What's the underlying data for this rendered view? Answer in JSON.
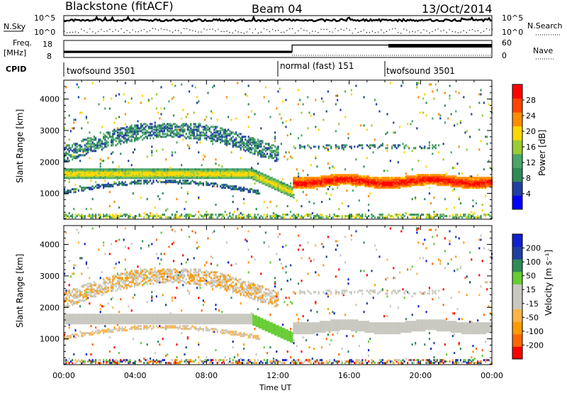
{
  "header": {
    "station": "Blackstone (fitACF)",
    "beam": "Beam 04",
    "date": "13/Oct/2014"
  },
  "noise_panel": {
    "left_label": "N.Sky",
    "right_label": "N.Search",
    "left_ticks": [
      "10^5",
      "10^0"
    ],
    "right_ticks": [
      "10^5",
      "10^0"
    ]
  },
  "freq_panel": {
    "left_label_top": "Freq.",
    "left_label_bottom": "[MHz]",
    "right_label": "Nave",
    "left_ticks": [
      "18",
      "8"
    ],
    "right_ticks": [
      "60",
      "0"
    ]
  },
  "cpid_panel": {
    "label": "CPID",
    "segments": [
      {
        "name": "twofsound 3501",
        "start_hour": 0,
        "end_hour": 12.0
      },
      {
        "name": "normal (fast) 151",
        "start_hour": 12.0,
        "end_hour": 18.0
      },
      {
        "name": "twofsound 3501",
        "start_hour": 18.0,
        "end_hour": 24.0
      }
    ]
  },
  "colors": {
    "power_scale": [
      "#0000ff",
      "#2040a0",
      "#2e8b57",
      "#4aa66a",
      "#9acd32",
      "#ffd700",
      "#ff8c00",
      "#ff4500",
      "#ff0000"
    ],
    "velocity_scale": [
      "#ff0000",
      "#ff6600",
      "#ff9900",
      "#ffb347",
      "#c8c8c0",
      "#c8c8c0",
      "#66cc33",
      "#2e8b57",
      "#1f3fa0",
      "#1020d0"
    ]
  },
  "chart_data": [
    {
      "type": "heatmap",
      "panel": "power",
      "ylabel": "Slant Range [km]",
      "xlim": [
        0,
        24
      ],
      "ylim": [
        180,
        4600
      ],
      "yticks": [
        1000,
        2000,
        3000,
        4000
      ],
      "colorbar": {
        "label": "Power [dB]",
        "ticks": [
          "4",
          "8",
          "12",
          "16",
          "20",
          "24",
          "28"
        ],
        "range": [
          0,
          30
        ]
      },
      "echo_bands": [
        {
          "description": "main ground scatter",
          "start_hour": 0,
          "end_hour": 12.8,
          "range_km_start": 1600,
          "range_km_end": 1000
        },
        {
          "description": "strong band after switch",
          "start_hour": 12.8,
          "end_hour": 24,
          "range_km": 1350
        }
      ]
    },
    {
      "type": "heatmap",
      "panel": "velocity",
      "ylabel": "Slant Range [km]",
      "xlabel": "Time UT",
      "xlim": [
        0,
        24
      ],
      "ylim": [
        180,
        4600
      ],
      "yticks": [
        1000,
        2000,
        3000,
        4000
      ],
      "xticks": [
        "00:00",
        "04:00",
        "08:00",
        "12:00",
        "16:00",
        "20:00",
        "00:00"
      ],
      "colorbar": {
        "label": "Velocity [m s⁻¹]",
        "ticks": [
          "-200",
          "-100",
          "-50",
          "-15",
          "15",
          "50",
          "100",
          "200"
        ],
        "range": [
          -250,
          250
        ]
      }
    }
  ]
}
